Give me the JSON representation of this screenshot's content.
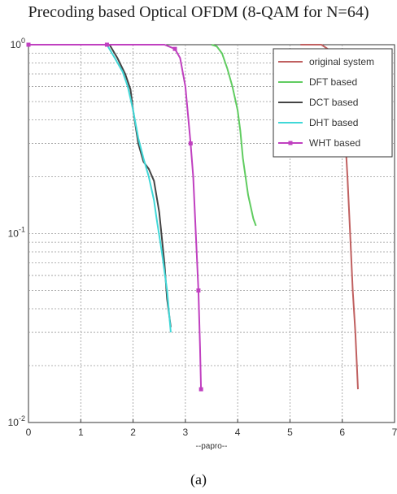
{
  "chart_data": {
    "type": "line",
    "title": "Precoding based Optical OFDM (8-QAM for N=64)",
    "xlabel": "--papro--",
    "ylabel": "",
    "xlim": [
      0,
      7
    ],
    "ylim": [
      0.01,
      1
    ],
    "yscale": "log",
    "grid": true,
    "legend_position": "top-right",
    "x_ticks": [
      "0",
      "1",
      "2",
      "3",
      "4",
      "5",
      "6",
      "7"
    ],
    "y_ticks": [
      {
        "value": 1,
        "base": "10",
        "exp": "0"
      },
      {
        "value": 0.1,
        "base": "10",
        "exp": "-1"
      },
      {
        "value": 0.01,
        "base": "10",
        "exp": "-2"
      }
    ],
    "series": [
      {
        "name": "original system",
        "color": "#c06060",
        "marker": "none",
        "x": [
          5.2,
          5.6,
          5.85,
          6.0,
          6.05,
          6.1,
          6.15,
          6.2,
          6.25,
          6.28,
          6.3
        ],
        "y": [
          1.0,
          1.0,
          0.9,
          0.6,
          0.35,
          0.2,
          0.1,
          0.05,
          0.03,
          0.02,
          0.015
        ]
      },
      {
        "name": "DFT based",
        "color": "#60cc60",
        "marker": "none",
        "x": [
          3.5,
          3.6,
          3.7,
          3.8,
          3.9,
          4.0,
          4.05,
          4.1,
          4.2,
          4.3,
          4.35
        ],
        "y": [
          1.0,
          0.98,
          0.9,
          0.75,
          0.6,
          0.45,
          0.35,
          0.25,
          0.16,
          0.12,
          0.11
        ]
      },
      {
        "name": "DCT based",
        "color": "#444444",
        "marker": "none",
        "x": [
          1.55,
          1.7,
          1.85,
          1.95,
          2.0,
          2.1,
          2.2,
          2.3,
          2.4,
          2.5,
          2.6,
          2.65,
          2.72
        ],
        "y": [
          1.0,
          0.85,
          0.7,
          0.58,
          0.45,
          0.3,
          0.24,
          0.22,
          0.19,
          0.13,
          0.07,
          0.045,
          0.032
        ]
      },
      {
        "name": "DHT based",
        "color": "#40d8d8",
        "marker": "none",
        "x": [
          1.5,
          1.65,
          1.8,
          1.9,
          2.0,
          2.1,
          2.2,
          2.3,
          2.4,
          2.45,
          2.55,
          2.65,
          2.72
        ],
        "y": [
          1.0,
          0.85,
          0.72,
          0.6,
          0.45,
          0.32,
          0.25,
          0.2,
          0.15,
          0.12,
          0.08,
          0.05,
          0.03
        ]
      },
      {
        "name": "WHT based",
        "color": "#c040c0",
        "marker": "square",
        "x": [
          0.0,
          0.5,
          1.0,
          1.5,
          2.0,
          2.6,
          2.8,
          2.9,
          3.0,
          3.1,
          3.15,
          3.2,
          3.25,
          3.28,
          3.3
        ],
        "y": [
          1.0,
          1.0,
          1.0,
          1.0,
          1.0,
          1.0,
          0.95,
          0.85,
          0.6,
          0.3,
          0.2,
          0.1,
          0.05,
          0.025,
          0.015
        ]
      }
    ]
  },
  "caption": "(a)"
}
